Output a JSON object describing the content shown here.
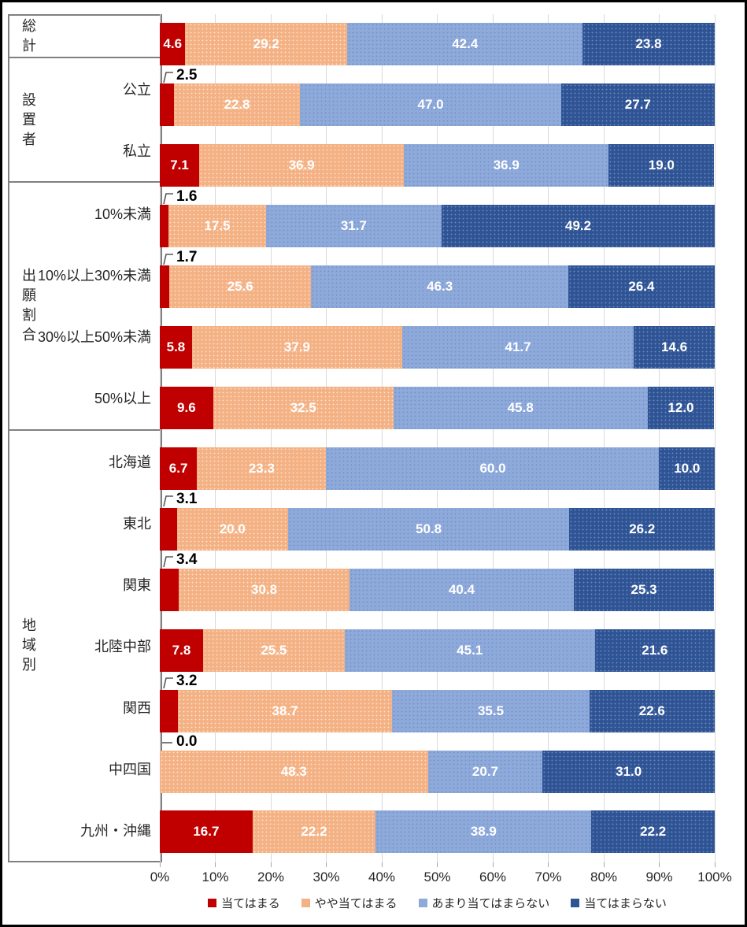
{
  "chart_data": {
    "type": "bar",
    "subtype": "horizontal-stacked-100pct",
    "title": "",
    "value_format": "one-decimal",
    "series": [
      {
        "name": "当てはまる",
        "color": "#C00000"
      },
      {
        "name": "やや当てはまる",
        "color": "#F4B183"
      },
      {
        "name": "あまり当てはまらない",
        "color": "#8EAADB"
      },
      {
        "name": "当てはまらない",
        "color": "#2F5496"
      }
    ],
    "groups": [
      {
        "label": "総計",
        "rows": [
          {
            "label": "",
            "values": [
              4.6,
              29.2,
              42.4,
              23.8
            ]
          }
        ]
      },
      {
        "label": "設置者",
        "rows": [
          {
            "label": "公立",
            "values": [
              2.5,
              22.8,
              47.0,
              27.7
            ]
          },
          {
            "label": "私立",
            "values": [
              7.1,
              36.9,
              36.9,
              19.0
            ]
          }
        ]
      },
      {
        "label": "出願割合",
        "rows": [
          {
            "label": "10%未満",
            "values": [
              1.6,
              17.5,
              31.7,
              49.2
            ]
          },
          {
            "label": "10%以上30%未満",
            "values": [
              1.7,
              25.6,
              46.3,
              26.4
            ]
          },
          {
            "label": "30%以上50%未満",
            "values": [
              5.8,
              37.9,
              41.7,
              14.6
            ]
          },
          {
            "label": "50%以上",
            "values": [
              9.6,
              32.5,
              45.8,
              12.0
            ]
          }
        ]
      },
      {
        "label": "地域別",
        "rows": [
          {
            "label": "北海道",
            "values": [
              6.7,
              23.3,
              60.0,
              10.0
            ]
          },
          {
            "label": "東北",
            "values": [
              3.1,
              20.0,
              50.8,
              26.2
            ]
          },
          {
            "label": "関東",
            "values": [
              3.4,
              30.8,
              40.4,
              25.3
            ]
          },
          {
            "label": "北陸中部",
            "values": [
              7.8,
              25.5,
              45.1,
              21.6
            ]
          },
          {
            "label": "関西",
            "values": [
              3.2,
              38.7,
              35.5,
              22.6
            ]
          },
          {
            "label": "中四国",
            "values": [
              0.0,
              48.3,
              20.7,
              31.0
            ]
          },
          {
            "label": "九州・沖縄",
            "values": [
              16.7,
              22.2,
              38.9,
              22.2
            ]
          }
        ]
      }
    ],
    "x_axis": {
      "range": [
        0,
        100
      ],
      "tick_labels": [
        "0%",
        "10%",
        "20%",
        "30%",
        "40%",
        "50%",
        "60%",
        "70%",
        "80%",
        "90%",
        "100%"
      ],
      "grid": true
    },
    "legend_position": "bottom",
    "callout_threshold": 4.5
  },
  "colors": {
    "gridline": "#D9D9D9",
    "panel_border": "#808080",
    "tick": "#A6A6A6",
    "text": "#262626",
    "bar_label": "#FFFFFF",
    "callout_text": "#000000",
    "leader_line": "#595959",
    "frame_border": "#000000"
  }
}
